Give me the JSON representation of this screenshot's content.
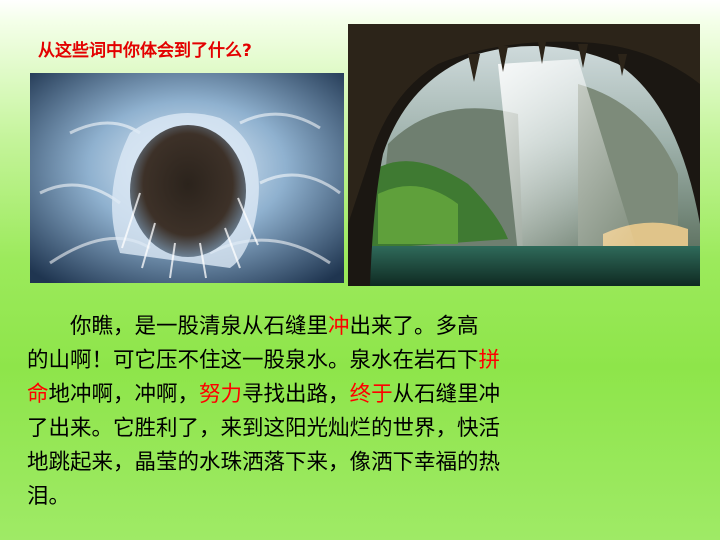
{
  "slide": {
    "question": "从这些词中你体会到了什么?",
    "images": {
      "left": "water-spring-photo",
      "right": "cave-waterfall-photo"
    },
    "passage": {
      "lines": [
        [
          {
            "t": "　　你瞧，是一股清泉从石缝里"
          },
          {
            "t": "冲",
            "hl": true
          },
          {
            "t": "出来了。多高"
          }
        ],
        [
          {
            "t": "的山啊！可它压不住这一股泉水。泉水在岩石下"
          },
          {
            "t": "拼",
            "hl": true
          }
        ],
        [
          {
            "t": "命",
            "hl": true
          },
          {
            "t": "地冲啊，冲啊，"
          },
          {
            "t": "努力",
            "hl": true
          },
          {
            "t": "寻找出路，"
          },
          {
            "t": "终于",
            "hl": true
          },
          {
            "t": "从石缝里冲"
          }
        ],
        [
          {
            "t": "了出来。它胜利了，来到这阳光灿烂的世界，快活"
          }
        ],
        [
          {
            "t": "地跳起来，晶莹的水珠洒落下来，像洒下幸福的热"
          }
        ],
        [
          {
            "t": "泪。"
          }
        ]
      ]
    },
    "colors": {
      "highlight": "#ff0000",
      "question": "#e30000",
      "background": "#9cea5c"
    }
  }
}
